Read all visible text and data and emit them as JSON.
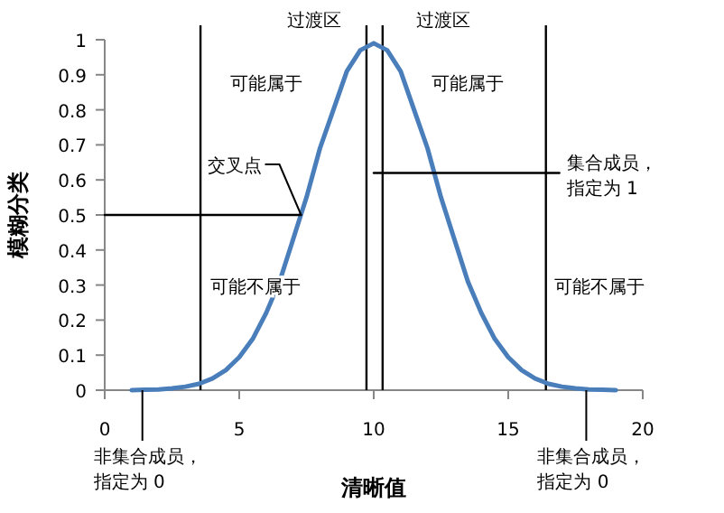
{
  "chart_data": {
    "type": "line",
    "xlabel": "清晰值",
    "ylabel": "模糊分类",
    "xlim": [
      0,
      20
    ],
    "ylim": [
      0,
      1
    ],
    "xticks": [
      0,
      5,
      10,
      15,
      20
    ],
    "yticks": [
      0,
      0.1,
      0.2,
      0.3,
      0.4,
      0.5,
      0.6,
      0.7,
      0.8,
      0.9,
      1
    ],
    "series": [
      {
        "color": "#4a7ebb",
        "x": [
          1,
          1.5,
          2,
          2.5,
          3,
          3.5,
          4,
          4.5,
          5,
          5.5,
          6,
          6.5,
          7,
          7.5,
          8,
          8.5,
          9,
          9.5,
          10,
          10.5,
          11,
          11.5,
          12,
          12.5,
          13,
          13.5,
          14,
          14.5,
          15,
          15.5,
          16,
          16.5,
          17,
          17.5,
          18,
          18.5,
          19
        ],
        "values": [
          0,
          0.001,
          0.002,
          0.005,
          0.01,
          0.018,
          0.033,
          0.057,
          0.094,
          0.146,
          0.22,
          0.31,
          0.43,
          0.55,
          0.69,
          0.8,
          0.91,
          0.97,
          0.99,
          0.97,
          0.91,
          0.8,
          0.69,
          0.55,
          0.43,
          0.31,
          0.22,
          0.146,
          0.094,
          0.057,
          0.033,
          0.018,
          0.01,
          0.005,
          0.002,
          0.001,
          0
        ]
      },
      {
        "color": "#000000",
        "x": [
          0,
          7.3
        ],
        "values": [
          0.5,
          0.5
        ]
      },
      {
        "color": "#000000",
        "x": [
          10,
          16.9
        ],
        "values": [
          0.62,
          0.62
        ]
      }
    ],
    "ref_lines": [
      {
        "axis": "x",
        "value": 3.56,
        "color": "#000000"
      },
      {
        "axis": "x",
        "value": 9.73,
        "color": "#000000"
      },
      {
        "axis": "x",
        "value": 10.33,
        "color": "#000000"
      },
      {
        "axis": "x",
        "value": 16.4,
        "color": "#000000"
      }
    ],
    "annotations": [
      "过渡区",
      "过渡区",
      "可能属于",
      "可能属于",
      "可能不属于",
      "可能不属于",
      {
        "text": "交叉点",
        "x": 7.3,
        "y": 0.5
      },
      {
        "text": "集合成员，指定为 1",
        "x": 16.9,
        "y": 0.62
      },
      {
        "text": "非集合成员，指定为 0",
        "x": 1.4,
        "y": 0
      },
      {
        "text": "非集合成员，指定为 0",
        "x": 17.9,
        "y": 0
      }
    ],
    "grid": false,
    "marker": "none",
    "line_style": "solid"
  }
}
